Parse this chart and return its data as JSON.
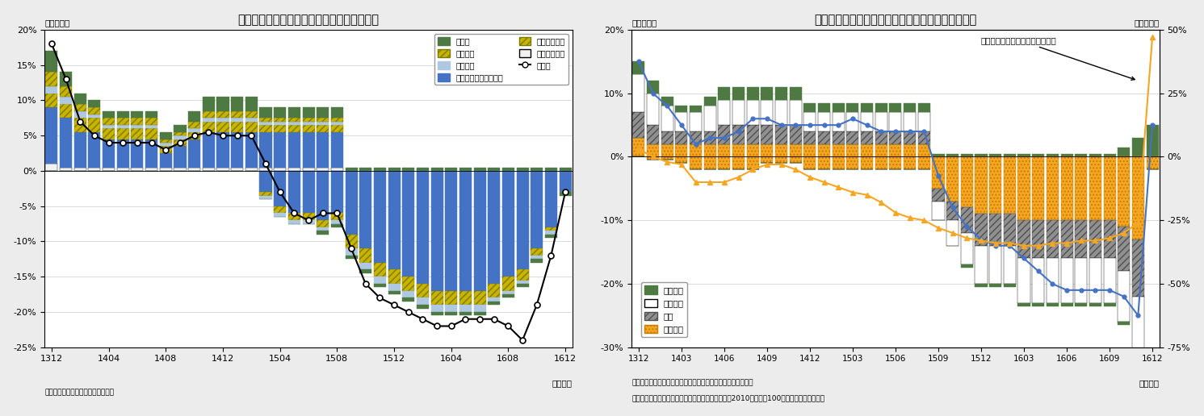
{
  "chart1": {
    "title": "輸入物価指数変化率の要因分解（円ベース）",
    "ylabel_left": "（前年比）",
    "xlabel": "（月次）",
    "source": "（資料）日本銀行「企業物価指数」",
    "ylim": [
      -25,
      20
    ],
    "yticks": [
      -25,
      -20,
      -15,
      -10,
      -5,
      0,
      5,
      10,
      15,
      20
    ],
    "ytick_labels": [
      "-25%",
      "-20%",
      "-15%",
      "-10%",
      "-5%",
      "0%",
      "5%",
      "10%",
      "15%",
      "20%"
    ],
    "xtick_pos": [
      0,
      4,
      8,
      12,
      16,
      20,
      24,
      28,
      32,
      36
    ],
    "xtick_labels": [
      "1312",
      "1404",
      "1408",
      "1412",
      "1504",
      "1508",
      "1512",
      "1604",
      "1608",
      "1612"
    ],
    "n": 37,
    "c_sekiyu": "#4472c4",
    "c_kinzoku": "#c8b400",
    "c_kagaku": "#adc8e0",
    "c_sonota": "#4f7942",
    "c_shokuryo": "#f2f2f2",
    "c_kikai": "#c8b400",
    "c_black": "#000000",
    "sekiyu_pos": [
      8,
      7,
      5,
      5,
      4,
      4,
      4,
      4,
      2,
      3,
      4,
      5,
      5,
      5,
      5,
      5,
      5,
      5,
      5,
      5,
      5,
      0,
      0,
      0,
      0,
      0,
      0,
      0,
      0,
      0,
      0,
      0,
      0,
      0,
      0,
      0,
      0
    ],
    "kinzoku_pos": [
      2,
      2,
      2,
      2,
      1.5,
      1.5,
      1.5,
      1.5,
      1,
      1,
      1,
      1.5,
      1.5,
      1.5,
      1.5,
      1,
      1,
      1,
      1,
      1,
      1,
      0,
      0,
      0,
      0,
      0,
      0,
      0,
      0,
      0,
      0,
      0,
      0,
      0,
      0,
      0,
      0
    ],
    "kagaku_pos": [
      1,
      1,
      1,
      0.5,
      0.5,
      0.5,
      0.5,
      0.5,
      0.5,
      0.5,
      0.5,
      0.5,
      0.5,
      0.5,
      0.5,
      0.5,
      0.5,
      0.5,
      0.5,
      0.5,
      0.5,
      0,
      0,
      0,
      0,
      0,
      0,
      0,
      0,
      0,
      0,
      0,
      0,
      0,
      0,
      0,
      0
    ],
    "kikai_pos": [
      2,
      1.5,
      1,
      1,
      1,
      1,
      1,
      1,
      0.5,
      0.5,
      1,
      1,
      1,
      1,
      1,
      0.5,
      0.5,
      0.5,
      0.5,
      0.5,
      0.5,
      0,
      0,
      0,
      0,
      0,
      0,
      0,
      0,
      0,
      0,
      0,
      0,
      0,
      0,
      0,
      0
    ],
    "sonota_pos": [
      3,
      2,
      1.5,
      1,
      1,
      1,
      1,
      1,
      1,
      1,
      1.5,
      2,
      2,
      2,
      2,
      1.5,
      1.5,
      1.5,
      1.5,
      1.5,
      1.5,
      0.5,
      0.5,
      0.5,
      0.5,
      0.5,
      0.5,
      0.5,
      0.5,
      0.5,
      0.5,
      0.5,
      0.5,
      0.5,
      0.5,
      0.5,
      0.5
    ],
    "shokuryo_pos": [
      1,
      0.5,
      0.5,
      0.5,
      0.5,
      0.5,
      0.5,
      0.5,
      0.5,
      0.5,
      0.5,
      0.5,
      0.5,
      0.5,
      0.5,
      0.5,
      0.5,
      0.5,
      0.5,
      0.5,
      0.5,
      0,
      0,
      0,
      0,
      0,
      0,
      0,
      0,
      0,
      0,
      0,
      0,
      0,
      0,
      0,
      0
    ],
    "sekiyu_neg": [
      0,
      0,
      0,
      0,
      0,
      0,
      0,
      0,
      0,
      0,
      0,
      0,
      0,
      0,
      0,
      -3,
      -5,
      -6,
      -6,
      -7,
      -6,
      -9,
      -11,
      -13,
      -14,
      -15,
      -16,
      -17,
      -17,
      -17,
      -17,
      -16,
      -15,
      -14,
      -11,
      -8,
      -3
    ],
    "kinzoku_neg": [
      0,
      0,
      0,
      0,
      0,
      0,
      0,
      0,
      0,
      0,
      0,
      0,
      0,
      0,
      0,
      -0.5,
      -1,
      -1,
      -1,
      -1,
      -1,
      -2,
      -2,
      -2,
      -2,
      -2,
      -2,
      -2,
      -2,
      -2,
      -2,
      -2,
      -2,
      -1.5,
      -1,
      -0.5,
      0
    ],
    "kagaku_neg": [
      0,
      0,
      0,
      0,
      0,
      0,
      0,
      0,
      0,
      0,
      0,
      0,
      0,
      0,
      0,
      -0.5,
      -0.5,
      -0.5,
      -0.5,
      -0.5,
      -0.5,
      -1,
      -1,
      -1,
      -1,
      -1,
      -1,
      -1,
      -1,
      -1,
      -1,
      -0.5,
      -0.5,
      -0.5,
      -0.5,
      -0.5,
      0
    ],
    "sonota_neg": [
      0,
      0,
      0,
      0,
      0,
      0,
      0,
      0,
      0,
      0,
      0,
      0,
      0,
      0,
      0,
      0,
      0,
      0,
      0,
      -0.5,
      -0.5,
      -0.5,
      -0.5,
      -0.5,
      -0.5,
      -0.5,
      -0.5,
      -0.5,
      -0.5,
      -0.5,
      -0.5,
      -0.5,
      -0.5,
      -0.5,
      -0.5,
      -0.5,
      -0.5
    ],
    "souheitkin": [
      18,
      13,
      7,
      5,
      4,
      4,
      4,
      4,
      3,
      4,
      5,
      5.5,
      5,
      5,
      5,
      1,
      -3,
      -6,
      -7,
      -6,
      -6,
      -11,
      -16,
      -18,
      -19,
      -20,
      -21,
      -22,
      -22,
      -21,
      -21,
      -21,
      -22,
      -24,
      -19,
      -12,
      -3
    ]
  },
  "chart2": {
    "title": "輸入物価（金属・同製品）の要因分解（円ベース）",
    "ylabel_left": "（前年比）",
    "ylabel_right": "（前年比）",
    "xlabel": "（月次）",
    "source1": "（資料）日本銀行「企業物価指数」「日本銀行国際商品指数」",
    "source2": "（注）日本銀行国際商品指数は円ベースに換算し、2010年平均を100として指数化したもの",
    "ylim_left": [
      -30,
      20
    ],
    "ylim_right": [
      -75,
      50
    ],
    "yticks_left": [
      -30,
      -20,
      -10,
      0,
      10,
      20
    ],
    "ytick_labels_left": [
      "-30%",
      "-20%",
      "-10%",
      "0%",
      "10%",
      "20%"
    ],
    "yticks_right": [
      -75,
      -50,
      -25,
      0,
      25,
      50
    ],
    "ytick_labels_right": [
      "-75%",
      "-50%",
      "-25%",
      "0%",
      "25%",
      "50%"
    ],
    "xtick_pos": [
      0,
      3,
      6,
      9,
      12,
      15,
      18,
      21,
      24,
      27,
      30,
      33,
      36
    ],
    "xtick_labels": [
      "1312",
      "1403",
      "1406",
      "1409",
      "1412",
      "1503",
      "1506",
      "1509",
      "1512",
      "1603",
      "1606",
      "1609",
      "1612"
    ],
    "annotation": "日本銀行国際商品指数（右目盛）",
    "n": 37,
    "c_tekko": "#909090",
    "c_hitetsu": "#ffffff",
    "c_sozai": "#f5a623",
    "c_kinzoku_seihin": "#4f7942",
    "tekko_pos2": [
      4,
      3,
      2,
      2,
      2,
      2,
      3,
      3,
      3,
      3,
      3,
      3,
      2,
      2,
      2,
      2,
      2,
      2,
      2,
      2,
      2,
      0,
      0,
      0,
      0,
      0,
      0,
      0,
      0,
      0,
      0,
      0,
      0,
      0,
      0,
      0,
      0
    ],
    "hitetsu_pos2": [
      6,
      5,
      4,
      3,
      3,
      4,
      4,
      4,
      4,
      4,
      4,
      4,
      3,
      3,
      3,
      3,
      3,
      3,
      3,
      3,
      3,
      0,
      0,
      0,
      0,
      0,
      0,
      0,
      0,
      0,
      0,
      0,
      0,
      0,
      0,
      0,
      0
    ],
    "kseihin_pos2": [
      2,
      2,
      1.5,
      1,
      1,
      1.5,
      2,
      2,
      2,
      2,
      2,
      2,
      1.5,
      1.5,
      1.5,
      1.5,
      1.5,
      1.5,
      1.5,
      1.5,
      1.5,
      0.5,
      0.5,
      0.5,
      0.5,
      0.5,
      0.5,
      0.5,
      0.5,
      0.5,
      0.5,
      0.5,
      0.5,
      0.5,
      1.5,
      3,
      5
    ],
    "sozai_pos2": [
      3,
      2,
      2,
      2,
      2,
      2,
      2,
      2,
      2,
      2,
      2,
      2,
      2,
      2,
      2,
      2,
      2,
      2,
      2,
      2,
      2,
      0,
      0,
      0,
      0,
      0,
      0,
      0,
      0,
      0,
      0,
      0,
      0,
      0,
      0,
      0,
      0
    ],
    "tekko_neg2": [
      0,
      0,
      0,
      0,
      0,
      0,
      0,
      0,
      0,
      0,
      0,
      0,
      0,
      0,
      0,
      0,
      0,
      0,
      0,
      0,
      0,
      -2,
      -3,
      -4,
      -5,
      -5,
      -5,
      -6,
      -6,
      -6,
      -6,
      -6,
      -6,
      -6,
      -7,
      -9,
      0
    ],
    "hitetsu_neg2": [
      0,
      0,
      0,
      0,
      0,
      0,
      0,
      0,
      0,
      0,
      0,
      0,
      0,
      0,
      0,
      0,
      0,
      0,
      0,
      0,
      0,
      -3,
      -4,
      -5,
      -6,
      -6,
      -6,
      -7,
      -7,
      -7,
      -7,
      -7,
      -7,
      -7,
      -8,
      -10,
      0
    ],
    "sozai_neg2": [
      0,
      -0.5,
      -0.5,
      -1,
      -2,
      -2,
      -2,
      -2,
      -2,
      -1,
      -1,
      -1,
      -2,
      -2,
      -2,
      -2,
      -2,
      -2,
      -2,
      -2,
      -2,
      -5,
      -7,
      -8,
      -9,
      -9,
      -9,
      -10,
      -10,
      -10,
      -10,
      -10,
      -10,
      -10,
      -11,
      -13,
      -2
    ],
    "kseihin_neg2": [
      0,
      0,
      0,
      0,
      0,
      0,
      0,
      0,
      0,
      0,
      0,
      0,
      0,
      0,
      0,
      0,
      0,
      0,
      0,
      0,
      0,
      0,
      0,
      -0.5,
      -0.5,
      -0.5,
      -0.5,
      -0.5,
      -0.5,
      -0.5,
      -0.5,
      -0.5,
      -0.5,
      -0.5,
      -0.5,
      -1,
      0
    ],
    "blue_line2": [
      15,
      10,
      8,
      5,
      2,
      3,
      3,
      4,
      6,
      6,
      5,
      5,
      5,
      5,
      5,
      6,
      5,
      4,
      4,
      4,
      4,
      -3,
      -8,
      -11,
      -13,
      -14,
      -14,
      -16,
      -18,
      -20,
      -21,
      -21,
      -21,
      -21,
      -22,
      -25,
      5
    ],
    "orange_line2": [
      3,
      0,
      -2,
      -3,
      -10,
      -10,
      -10,
      -8,
      -5,
      -3,
      -3,
      -5,
      -8,
      -10,
      -12,
      -14,
      -15,
      -18,
      -22,
      -24,
      -25,
      -28,
      -30,
      -32,
      -33,
      -34,
      -34,
      -35,
      -35,
      -34,
      -34,
      -33,
      -33,
      -32,
      -30,
      -26,
      47
    ]
  }
}
